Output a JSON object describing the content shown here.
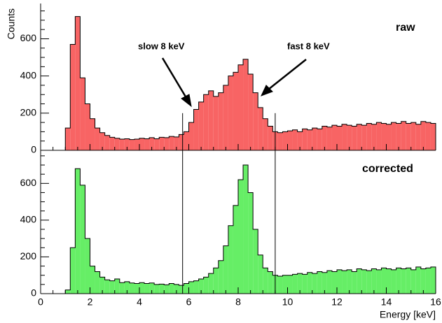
{
  "chart_data": [
    {
      "type": "histogram",
      "label": "raw",
      "ylabel": "Counts",
      "color": "#f86464",
      "annotations": [
        "slow 8 keV",
        "fast 8 keV"
      ],
      "bins": [
        1.0,
        1.2,
        1.4,
        1.6,
        1.8,
        2.0,
        2.2,
        2.4,
        2.6,
        2.8,
        3.0,
        3.2,
        3.4,
        3.6,
        3.8,
        4.0,
        4.2,
        4.4,
        4.6,
        4.8,
        5.0,
        5.2,
        5.4,
        5.6,
        5.8,
        6.0,
        6.2,
        6.4,
        6.6,
        6.8,
        7.0,
        7.2,
        7.4,
        7.6,
        7.8,
        8.0,
        8.2,
        8.4,
        8.6,
        8.8,
        9.0,
        9.2,
        9.4,
        9.6,
        9.8,
        10.0,
        10.2,
        10.4,
        10.6,
        10.8,
        11.0,
        11.2,
        11.4,
        11.6,
        11.8,
        12.0,
        12.2,
        12.4,
        12.6,
        12.8,
        13.0,
        13.2,
        13.4,
        13.6,
        13.8,
        14.0,
        14.2,
        14.4,
        14.6,
        14.8,
        15.0,
        15.2,
        15.4,
        15.6,
        15.8,
        16.0
      ],
      "values": [
        120,
        570,
        720,
        390,
        250,
        170,
        120,
        95,
        80,
        70,
        65,
        60,
        62,
        58,
        60,
        65,
        62,
        68,
        62,
        70,
        68,
        75,
        72,
        85,
        100,
        150,
        220,
        260,
        300,
        320,
        290,
        310,
        350,
        400,
        420,
        460,
        490,
        410,
        310,
        230,
        170,
        130,
        100,
        95,
        100,
        105,
        110,
        100,
        115,
        110,
        120,
        115,
        130,
        125,
        135,
        130,
        140,
        135,
        130,
        140,
        135,
        145,
        140,
        150,
        145,
        140,
        150,
        145,
        155,
        145,
        150,
        140,
        155,
        150,
        145
      ],
      "xlim": [
        0,
        16
      ],
      "xticks": [
        0,
        2,
        4,
        6,
        8,
        10,
        12,
        14,
        16
      ],
      "ylim": [
        0,
        790
      ],
      "yticks": [
        0,
        200,
        400,
        600
      ],
      "vlines": [
        5.75,
        9.5
      ],
      "vline_top": 200
    },
    {
      "type": "histogram",
      "label": "corrected",
      "xlabel": "Energy [keV]",
      "color": "#66ee66",
      "bins": [
        1.0,
        1.2,
        1.4,
        1.6,
        1.8,
        2.0,
        2.2,
        2.4,
        2.6,
        2.8,
        3.0,
        3.2,
        3.4,
        3.6,
        3.8,
        4.0,
        4.2,
        4.4,
        4.6,
        4.8,
        5.0,
        5.2,
        5.4,
        5.6,
        5.8,
        6.0,
        6.2,
        6.4,
        6.6,
        6.8,
        7.0,
        7.2,
        7.4,
        7.6,
        7.8,
        8.0,
        8.2,
        8.4,
        8.6,
        8.8,
        9.0,
        9.2,
        9.4,
        9.6,
        9.8,
        10.0,
        10.2,
        10.4,
        10.6,
        10.8,
        11.0,
        11.2,
        11.4,
        11.6,
        11.8,
        12.0,
        12.2,
        12.4,
        12.6,
        12.8,
        13.0,
        13.2,
        13.4,
        13.6,
        13.8,
        14.0,
        14.2,
        14.4,
        14.6,
        14.8,
        15.0,
        15.2,
        15.4,
        15.6,
        15.8,
        16.0
      ],
      "values": [
        20,
        250,
        680,
        590,
        300,
        150,
        120,
        90,
        75,
        70,
        80,
        60,
        65,
        58,
        55,
        60,
        55,
        58,
        50,
        52,
        48,
        55,
        50,
        45,
        55,
        65,
        70,
        80,
        90,
        110,
        140,
        180,
        260,
        370,
        480,
        620,
        700,
        550,
        350,
        210,
        140,
        120,
        100,
        95,
        100,
        100,
        105,
        110,
        105,
        115,
        110,
        120,
        115,
        125,
        120,
        130,
        125,
        130,
        120,
        135,
        130,
        125,
        135,
        130,
        140,
        135,
        130,
        140,
        135,
        140,
        130,
        145,
        135,
        140,
        145
      ],
      "xlim": [
        0,
        16
      ],
      "xticks": [
        0,
        2,
        4,
        6,
        8,
        10,
        12,
        14,
        16
      ],
      "ylim": [
        0,
        780
      ],
      "yticks": [
        0,
        200,
        400,
        600
      ],
      "vlines": [
        5.75,
        9.5
      ]
    }
  ]
}
